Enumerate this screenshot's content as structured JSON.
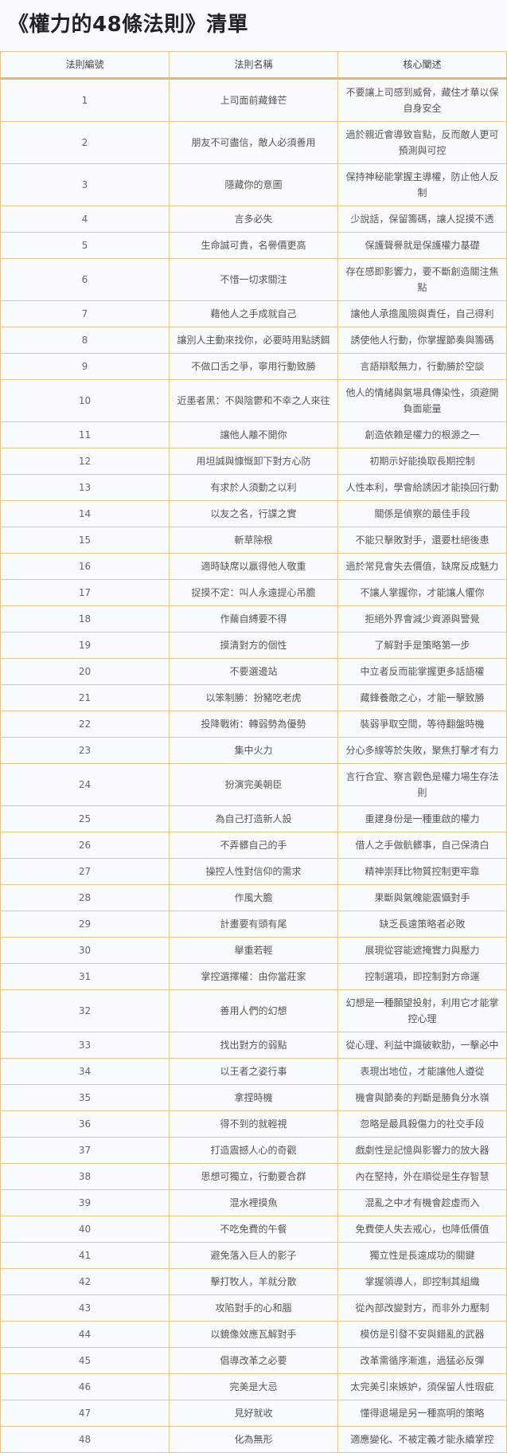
{
  "title": "《權力的48條法則》清單",
  "colors": {
    "border": "#e9c48f",
    "header_rule": "#e6b676",
    "background": "#f9fafc",
    "text": "#555555"
  },
  "table": {
    "headers": [
      "法則編號",
      "法則名稱",
      "核心闡述"
    ],
    "rows": [
      [
        "1",
        "上司面前藏鋒芒",
        "不要讓上司感到威脅，藏住才華以保自身安全"
      ],
      [
        "2",
        "朋友不可盡信，敵人必須善用",
        "過於親近會導致盲點，反而敵人更可預測與可控"
      ],
      [
        "3",
        "隱藏你的意圖",
        "保持神秘能掌握主導權，防止他人反制"
      ],
      [
        "4",
        "言多必失",
        "少說話，保留籌碼，讓人捉摸不透"
      ],
      [
        "5",
        "生命誠可貴，名譽價更高",
        "保護聲譽就是保護權力基礎"
      ],
      [
        "6",
        "不惜一切求關注",
        "存在感即影響力，要不斷創造關注焦點"
      ],
      [
        "7",
        "藉他人之手成就自己",
        "讓他人承擔風險與責任，自己得利"
      ],
      [
        "8",
        "讓別人主動來找你，必要時用點誘餌",
        "誘使他人行動，你掌握節奏與籌碼"
      ],
      [
        "9",
        "不做口舌之爭，寧用行動致勝",
        "言語辯駁無力，行動勝於空談"
      ],
      [
        "10",
        "近墨者黑：不與陰鬱和不幸之人來往",
        "他人的情緒與氣場具傳染性，須避開負面能量"
      ],
      [
        "11",
        "讓他人離不開你",
        "創造依賴是權力的根源之一"
      ],
      [
        "12",
        "用坦誠與慷慨卸下對方心防",
        "初期示好能換取長期控制"
      ],
      [
        "13",
        "有求於人須動之以利",
        "人性本利，學會給誘因才能換回行動"
      ],
      [
        "14",
        "以友之名，行諜之實",
        "關係是偵察的最佳手段"
      ],
      [
        "15",
        "斬草除根",
        "不能只擊敗對手，還要杜絕後患"
      ],
      [
        "16",
        "適時缺席以贏得他人敬重",
        "過於常見會失去價值，缺席反成魅力"
      ],
      [
        "17",
        "捉摸不定：叫人永遠提心吊膽",
        "不讓人掌握你，才能讓人懼你"
      ],
      [
        "18",
        "作繭自縛要不得",
        "拒絕外界會減少資源與警覺"
      ],
      [
        "19",
        "摸清對方的個性",
        "了解對手是策略第一步"
      ],
      [
        "20",
        "不要選邊站",
        "中立者反而能掌握更多話語權"
      ],
      [
        "21",
        "以笨制勝：扮豬吃老虎",
        "藏鋒養敵之心，才能一擊致勝"
      ],
      [
        "22",
        "投降戰術：轉弱勢為優勢",
        "裝弱爭取空間，等待翻盤時機"
      ],
      [
        "23",
        "集中火力",
        "分心多線等於失敗，聚焦打擊才有力"
      ],
      [
        "24",
        "扮演完美朝臣",
        "言行合宜、察言觀色是權力場生存法則"
      ],
      [
        "25",
        "為自己打造新人設",
        "重建身份是一種重啟的權力"
      ],
      [
        "26",
        "不弄髒自己的手",
        "借人之手做骯髒事，自己保清白"
      ],
      [
        "27",
        "操控人性對信仰的需求",
        "精神崇拜比物質控制更牢靠"
      ],
      [
        "28",
        "作風大膽",
        "果斷與氣魄能震懾對手"
      ],
      [
        "29",
        "計畫要有頭有尾",
        "缺乏長遠策略者必敗"
      ],
      [
        "30",
        "舉重若輕",
        "展現從容能遮掩實力與壓力"
      ],
      [
        "31",
        "掌控選擇權：由你當莊家",
        "控制選項，即控制對方命運"
      ],
      [
        "32",
        "善用人們的幻想",
        "幻想是一種願望投射，利用它才能掌控心理"
      ],
      [
        "33",
        "找出對方的弱點",
        "從心理、利益中識破軟肋，一擊必中"
      ],
      [
        "34",
        "以王者之姿行事",
        "表現出地位，才能讓他人遵從"
      ],
      [
        "35",
        "拿捏時機",
        "機會與節奏的判斷是勝負分水嶺"
      ],
      [
        "36",
        "得不到的就輕視",
        "忽略是最具殺傷力的社交手段"
      ],
      [
        "37",
        "打造震撼人心的奇觀",
        "戲劇性是記憶與影響力的放大器"
      ],
      [
        "38",
        "思想可獨立，行動要合群",
        "內在堅持，外在順從是生存智慧"
      ],
      [
        "39",
        "混水裡摸魚",
        "混亂之中才有機會趁虛而入"
      ],
      [
        "40",
        "不吃免費的午餐",
        "免費使人失去戒心，也降低價值"
      ],
      [
        "41",
        "避免落入巨人的影子",
        "獨立性是長遠成功的關鍵"
      ],
      [
        "42",
        "擊打牧人，羊就分散",
        "掌握領導人，即控制其組織"
      ],
      [
        "43",
        "攻陷對手的心和腦",
        "從內部改變對方，而非外力壓制"
      ],
      [
        "44",
        "以鏡像效應瓦解對手",
        "模仿是引發不安與錯亂的武器"
      ],
      [
        "45",
        "倡導改革之必要",
        "改革需循序漸進，過猛必反彈"
      ],
      [
        "46",
        "完美是大忌",
        "太完美引來嫉妒，須保留人性瑕疵"
      ],
      [
        "47",
        "見好就收",
        "懂得退場是另一種高明的策略"
      ],
      [
        "48",
        "化為無形",
        "適應變化、不被定義才能永續掌控"
      ]
    ]
  }
}
